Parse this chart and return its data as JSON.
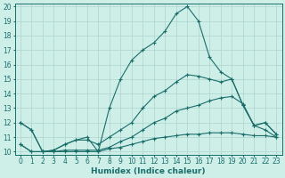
{
  "xlabel": "Humidex (Indice chaleur)",
  "bg_color": "#ceeee8",
  "grid_color": "#aed4ce",
  "line_color": "#1a6e6a",
  "xlim": [
    -0.5,
    23.5
  ],
  "ylim": [
    9.8,
    20.2
  ],
  "yticks": [
    10,
    11,
    12,
    13,
    14,
    15,
    16,
    17,
    18,
    19,
    20
  ],
  "xticks": [
    0,
    1,
    2,
    3,
    4,
    5,
    6,
    7,
    8,
    9,
    10,
    11,
    12,
    13,
    14,
    15,
    16,
    17,
    18,
    19,
    20,
    21,
    22,
    23
  ],
  "lines": [
    {
      "x": [
        0,
        1,
        2,
        3,
        4,
        5,
        6,
        7,
        8,
        9,
        10,
        11,
        12,
        13,
        14,
        15,
        16,
        17,
        18,
        19,
        20,
        21,
        22,
        23
      ],
      "y": [
        10.5,
        10.0,
        10.0,
        10.0,
        10.0,
        10.0,
        10.0,
        10.0,
        10.2,
        10.3,
        10.5,
        10.7,
        10.9,
        11.0,
        11.1,
        11.2,
        11.2,
        11.3,
        11.3,
        11.3,
        11.2,
        11.1,
        11.1,
        11.0
      ]
    },
    {
      "x": [
        0,
        1,
        2,
        3,
        4,
        5,
        6,
        7,
        8,
        9,
        10,
        11,
        12,
        13,
        14,
        15,
        16,
        17,
        18,
        19,
        20,
        21,
        22,
        23
      ],
      "y": [
        10.5,
        10.0,
        10.0,
        10.0,
        10.1,
        10.1,
        10.1,
        10.1,
        10.3,
        10.7,
        11.0,
        11.5,
        12.0,
        12.3,
        12.8,
        13.0,
        13.2,
        13.5,
        13.7,
        13.8,
        13.3,
        11.8,
        11.5,
        11.0
      ]
    },
    {
      "x": [
        0,
        1,
        2,
        3,
        4,
        5,
        6,
        7,
        8,
        9,
        10,
        11,
        12,
        13,
        14,
        15,
        16,
        17,
        18,
        19,
        20,
        21,
        22,
        23
      ],
      "y": [
        12.0,
        11.5,
        10.0,
        10.1,
        10.5,
        10.8,
        10.8,
        10.5,
        11.0,
        11.5,
        12.0,
        13.0,
        13.8,
        14.2,
        14.8,
        15.3,
        15.2,
        15.0,
        14.8,
        15.0,
        13.2,
        11.8,
        12.0,
        11.2
      ]
    },
    {
      "x": [
        0,
        1,
        2,
        3,
        4,
        5,
        6,
        7,
        8,
        9,
        10,
        11,
        12,
        13,
        14,
        15,
        16,
        17,
        18,
        19,
        20,
        21,
        22,
        23
      ],
      "y": [
        12.0,
        11.5,
        10.0,
        10.1,
        10.5,
        10.8,
        11.0,
        10.0,
        13.0,
        15.0,
        16.3,
        17.0,
        17.5,
        18.3,
        19.5,
        20.0,
        19.0,
        16.5,
        15.5,
        15.0,
        13.2,
        11.8,
        12.0,
        11.2
      ]
    }
  ]
}
